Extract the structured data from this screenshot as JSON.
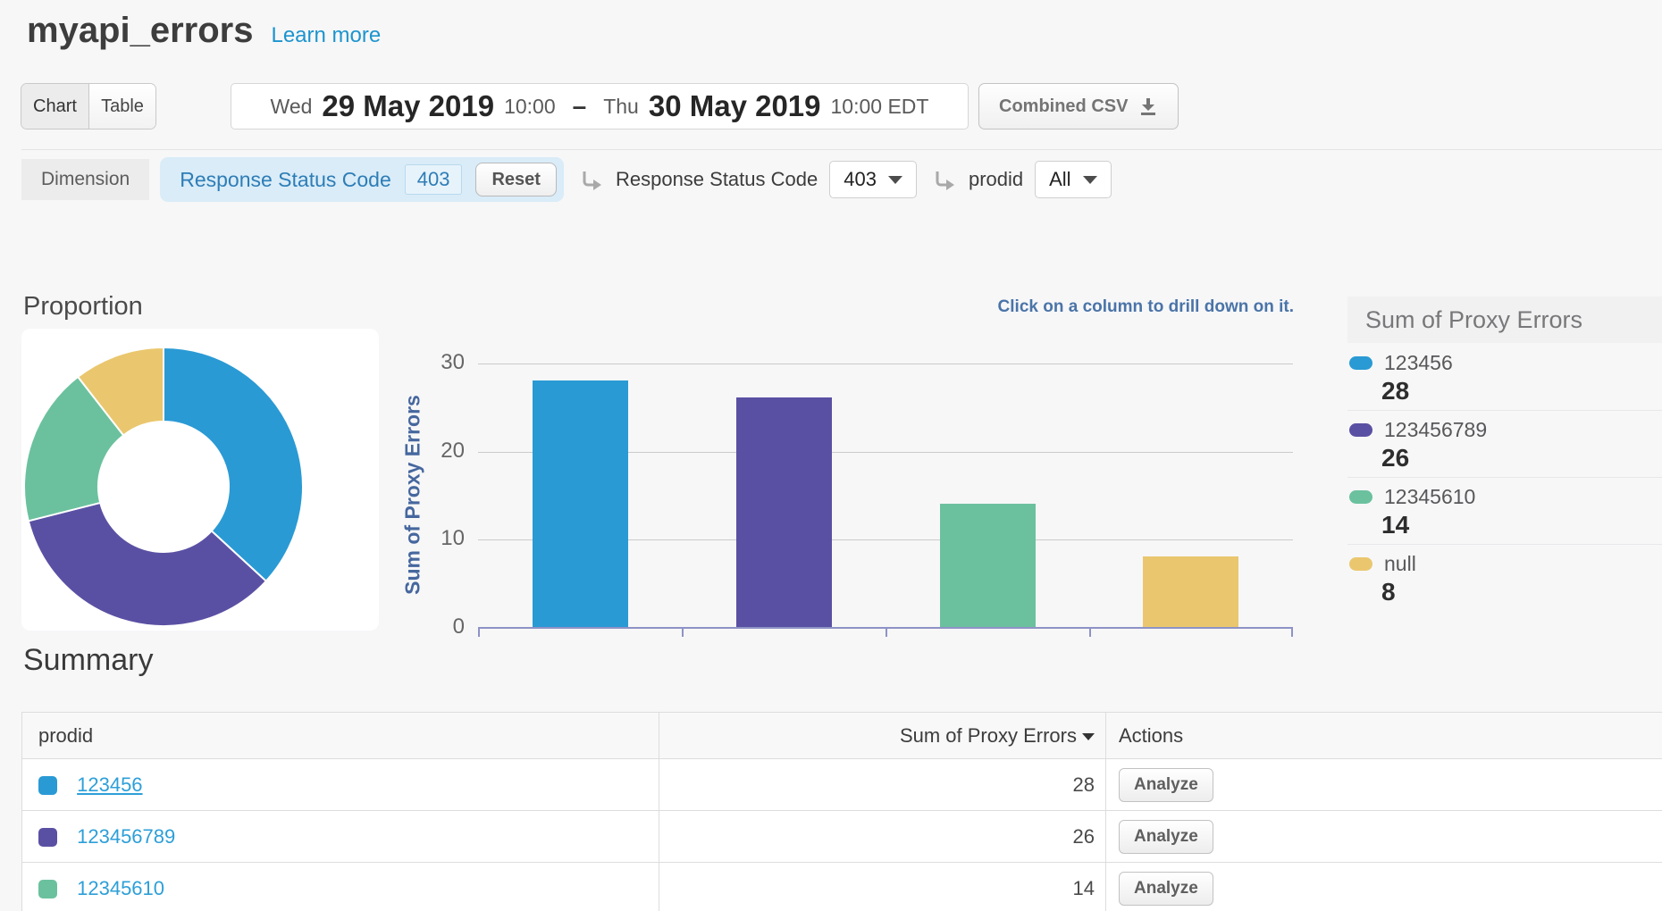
{
  "header": {
    "title": "myapi_errors",
    "learn_more_label": "Learn more"
  },
  "toolbar": {
    "view_toggle": {
      "chart_label": "Chart",
      "table_label": "Table"
    },
    "date_range": {
      "start_day": "Wed",
      "start_date": "29 May 2019",
      "start_time": "10:00",
      "separator": "–",
      "end_day": "Thu",
      "end_date": "30 May 2019",
      "end_time": "10:00 EDT"
    },
    "csv_button_label": "Combined CSV"
  },
  "filter_bar": {
    "dimension_label": "Dimension",
    "active_filter": {
      "name": "Response Status Code",
      "value": "403",
      "reset_label": "Reset"
    },
    "drilldowns": [
      {
        "name": "Response Status Code",
        "value": "403"
      },
      {
        "name": "prodid",
        "value": "All"
      }
    ]
  },
  "legend": {
    "title": "Sum of Proxy Errors",
    "items": [
      {
        "label": "123456",
        "value": 28,
        "color": "#2a9ad4"
      },
      {
        "label": "123456789",
        "value": 26,
        "color": "#5a50a3"
      },
      {
        "label": "12345610",
        "value": 14,
        "color": "#6bc19e"
      },
      {
        "label": "null",
        "value": 8,
        "color": "#eac76e"
      }
    ]
  },
  "summary": {
    "title": "Summary",
    "columns": [
      "prodid",
      "Sum of Proxy Errors",
      "Actions"
    ],
    "action_label": "Analyze",
    "rows": [
      {
        "label": "123456",
        "value": 28
      },
      {
        "label": "123456789",
        "value": 26
      },
      {
        "label": "12345610",
        "value": 14
      }
    ]
  },
  "chart_data": [
    {
      "type": "pie",
      "subtype": "donut",
      "title": "Proportion",
      "labels": [
        "123456",
        "123456789",
        "12345610",
        "null"
      ],
      "values": [
        28,
        26,
        14,
        8
      ],
      "colors": [
        "#2a9ad4",
        "#5a50a3",
        "#6bc19e",
        "#eac76e"
      ]
    },
    {
      "type": "bar",
      "categories": [
        "123456",
        "123456789",
        "12345610",
        "null"
      ],
      "values": [
        28,
        26,
        14,
        8
      ],
      "colors": [
        "#2a9ad4",
        "#5a50a3",
        "#6bc19e",
        "#eac76e"
      ],
      "ylabel": "Sum of Proxy Errors",
      "yticks": [
        30,
        20,
        10,
        0
      ],
      "ylim": [
        0,
        30
      ],
      "grid": true,
      "legend_position": "right",
      "annotation": "Click on a column to drill down on it."
    }
  ]
}
